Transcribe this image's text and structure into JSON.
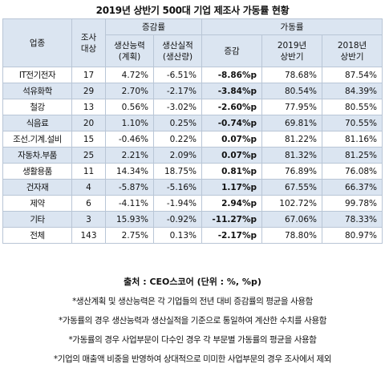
{
  "title": "2019년 상반기 500대 기업 제조사 가동률 현황",
  "headers": {
    "industry": "업종",
    "survey_l1": "조사",
    "survey_l2": "대상",
    "group_change": "증감률",
    "group_util": "가동률",
    "cap_l1": "생산능력",
    "cap_l2": "(계획)",
    "perf_l1": "생산실적",
    "perf_l2": "(생산량)",
    "delta": "증감",
    "y2019_l1": "2019년",
    "y2019_l2": "상반기",
    "y2018_l1": "2018년",
    "y2018_l2": "상반기"
  },
  "rows": [
    {
      "industry": "IT전기전자",
      "count": "17",
      "capacity": "4.72%",
      "output": "-6.51%",
      "delta": "-8.86%p",
      "h1_2019": "78.68%",
      "h1_2018": "87.54%"
    },
    {
      "industry": "석유화학",
      "count": "29",
      "capacity": "2.70%",
      "output": "-2.17%",
      "delta": "-3.84%p",
      "h1_2019": "80.54%",
      "h1_2018": "84.39%"
    },
    {
      "industry": "철강",
      "count": "13",
      "capacity": "0.56%",
      "output": "-3.02%",
      "delta": "-2.60%p",
      "h1_2019": "77.95%",
      "h1_2018": "80.55%"
    },
    {
      "industry": "식음료",
      "count": "20",
      "capacity": "1.10%",
      "output": "0.25%",
      "delta": "-0.74%p",
      "h1_2019": "69.81%",
      "h1_2018": "70.55%"
    },
    {
      "industry": "조선.기계.설비",
      "count": "15",
      "capacity": "-0.46%",
      "output": "0.22%",
      "delta": "0.07%p",
      "h1_2019": "81.22%",
      "h1_2018": "81.16%"
    },
    {
      "industry": "자동차.부품",
      "count": "25",
      "capacity": "2.21%",
      "output": "2.09%",
      "delta": "0.07%p",
      "h1_2019": "81.32%",
      "h1_2018": "81.25%"
    },
    {
      "industry": "생활용품",
      "count": "11",
      "capacity": "14.34%",
      "output": "18.75%",
      "delta": "0.81%p",
      "h1_2019": "76.89%",
      "h1_2018": "76.08%"
    },
    {
      "industry": "건자재",
      "count": "4",
      "capacity": "-5.87%",
      "output": "-5.16%",
      "delta": "1.17%p",
      "h1_2019": "67.55%",
      "h1_2018": "66.37%"
    },
    {
      "industry": "제약",
      "count": "6",
      "capacity": "-4.11%",
      "output": "-1.94%",
      "delta": "2.94%p",
      "h1_2019": "102.72%",
      "h1_2018": "99.78%"
    },
    {
      "industry": "기타",
      "count": "3",
      "capacity": "15.93%",
      "output": "-0.92%",
      "delta": "-11.27%p",
      "h1_2019": "67.06%",
      "h1_2018": "78.33%"
    },
    {
      "industry": "전체",
      "count": "143",
      "capacity": "2.75%",
      "output": "0.13%",
      "delta": "-2.17%p",
      "h1_2019": "78.80%",
      "h1_2018": "80.97%"
    }
  ],
  "source": "출처 : CEO스코어 (단위 : %, %p)",
  "notes": [
    "*생산계획 및 생산능력은 각 기업들의 전년 대비 증감률의 평균을 사용함",
    "*가동률의 경우 생산능력과 생산실적을 기준으로 통일하여 계산한 수치를 사용함",
    "*가동률의 경우 사업부문이 다수인 경우 각 부문별 가동률의 평균을 사용함",
    "*기업의 매출액 비중을 반영하여 상대적으로 미미한 사업부문의 경우 조사에서 제외"
  ]
}
